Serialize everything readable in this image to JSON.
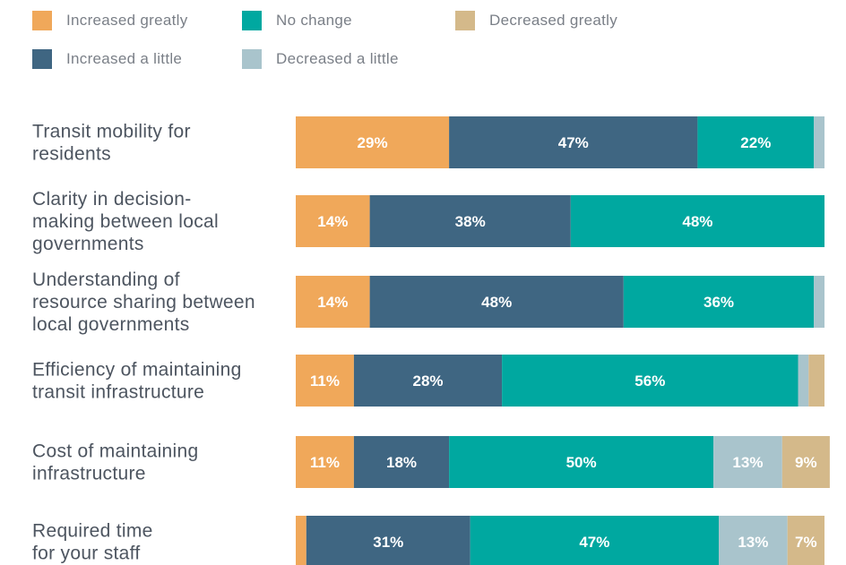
{
  "chart_data": {
    "type": "bar",
    "orientation": "horizontal",
    "stacked": true,
    "categories": [
      "Transit mobility for residents",
      "Clarity in decision-making between local governments",
      "Understanding of resource sharing between local governments",
      "Efficiency of maintaining transit infrastructure",
      "Cost of maintaining infrastructure",
      "Required time for your staff"
    ],
    "category_lines": [
      [
        "Transit mobility for",
        "residents"
      ],
      [
        "Clarity in decision-",
        "making between local",
        "governments"
      ],
      [
        "Understanding of",
        "resource sharing between",
        "local governments"
      ],
      [
        "Efficiency of maintaining",
        "transit infrastructure"
      ],
      [
        "Cost of maintaining",
        "infrastructure"
      ],
      [
        "Required time",
        "for your staff"
      ]
    ],
    "series": [
      {
        "name": "Increased greatly",
        "color": "#f0a85a",
        "values": [
          29,
          14,
          14,
          11,
          11,
          2
        ]
      },
      {
        "name": "Increased a little",
        "color": "#3f6682",
        "values": [
          47,
          38,
          48,
          28,
          18,
          31
        ]
      },
      {
        "name": "No change",
        "color": "#00a8a0",
        "values": [
          22,
          48,
          36,
          56,
          50,
          47
        ]
      },
      {
        "name": "Decreased a little",
        "color": "#a9c4cc",
        "values": [
          2,
          0,
          2,
          2,
          13,
          13
        ]
      },
      {
        "name": "Decreased greatly",
        "color": "#d4b98a",
        "values": [
          0,
          0,
          0,
          3,
          9,
          7
        ]
      }
    ],
    "data_labels": [
      [
        "29%",
        "47%",
        "22%",
        "",
        ""
      ],
      [
        "14%",
        "38%",
        "48%",
        "",
        ""
      ],
      [
        "14%",
        "48%",
        "36%",
        "",
        ""
      ],
      [
        "11%",
        "28%",
        "56%",
        "",
        ""
      ],
      [
        "11%",
        "18%",
        "50%",
        "13%",
        "9%"
      ],
      [
        "",
        "31%",
        "47%",
        "13%",
        "7%"
      ]
    ],
    "legend": {
      "placement": "top",
      "rows": [
        [
          "Increased greatly",
          "No change",
          "Decreased greatly"
        ],
        [
          "Increased a little",
          "Decreased a little"
        ]
      ]
    },
    "xlim": [
      0,
      100
    ],
    "grid": false
  }
}
